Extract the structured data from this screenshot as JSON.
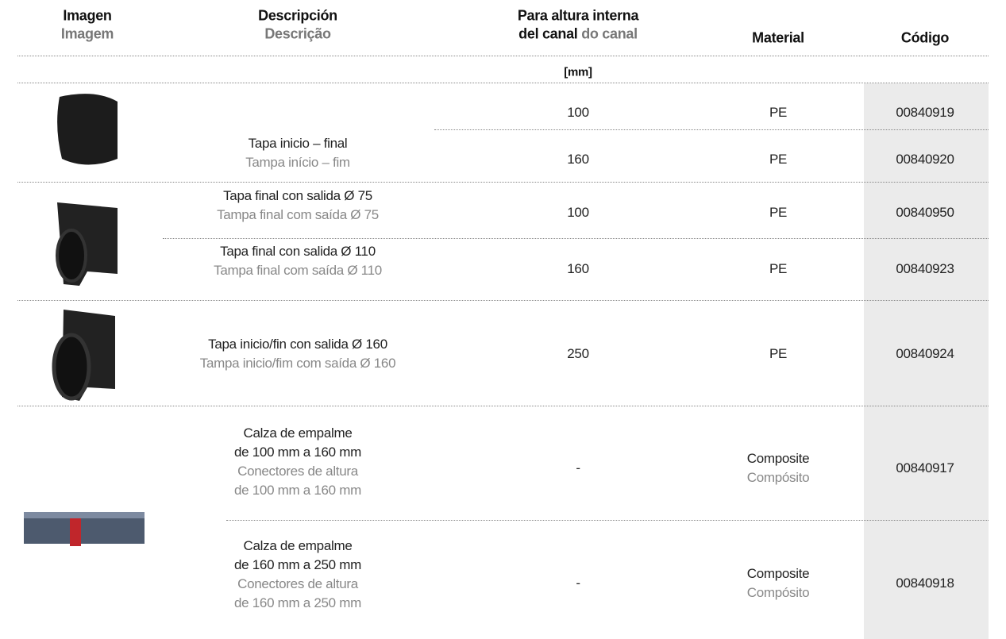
{
  "header": {
    "image": {
      "es": "Imagen",
      "pt": "Imagem"
    },
    "description": {
      "es": "Descripción",
      "pt": "Descrição"
    },
    "height": {
      "es_1": "Para altura interna",
      "es_2": "del canal",
      "pt": "do canal"
    },
    "material": "Material",
    "code": "Código",
    "unit": "[mm]"
  },
  "rows": [
    {
      "description": {
        "es": [
          "Tapa inicio – final"
        ],
        "pt": [
          "Tampa início – fim"
        ]
      },
      "height": 100,
      "material": {
        "es": "PE"
      },
      "code": "00840919"
    },
    {
      "height": 160,
      "material": {
        "es": "PE"
      },
      "code": "00840920"
    },
    {
      "description": {
        "es": [
          "Tapa final con salida Ø 75"
        ],
        "pt": [
          "Tampa final com saída Ø 75"
        ]
      },
      "height": 100,
      "material": {
        "es": "PE"
      },
      "code": "00840950"
    },
    {
      "description": {
        "es": [
          "Tapa final con salida Ø 110"
        ],
        "pt": [
          "Tampa final com saída Ø 110"
        ]
      },
      "height": 160,
      "material": {
        "es": "PE"
      },
      "code": "00840923"
    },
    {
      "description": {
        "es": [
          "Tapa inicio/fin con salida Ø 160"
        ],
        "pt": [
          "Tampa inicio/fim com saída Ø 160"
        ]
      },
      "height": 250,
      "material": {
        "es": "PE"
      },
      "code": "00840924"
    },
    {
      "description": {
        "es": [
          "Calza de empalme",
          "de 100 mm a 160 mm"
        ],
        "pt": [
          "Conectores de altura",
          "de 100 mm a 160 mm"
        ]
      },
      "height": "-",
      "material": {
        "es": "Composite",
        "pt": "Compósito"
      },
      "code": "00840917"
    },
    {
      "description": {
        "es": [
          "Calza de empalme",
          "de 160 mm a 250 mm"
        ],
        "pt": [
          "Conectores de altura",
          "de 160 mm a 250 mm"
        ]
      },
      "height": "-",
      "material": {
        "es": "Composite",
        "pt": "Compósito"
      },
      "code": "00840918"
    }
  ]
}
